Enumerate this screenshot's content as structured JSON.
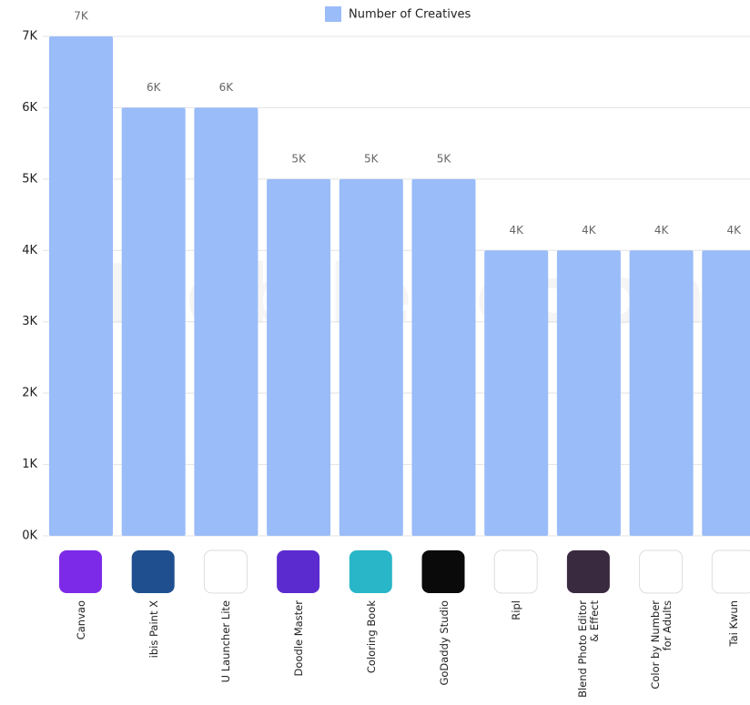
{
  "chart_data": {
    "type": "bar",
    "watermark": "MobileAction",
    "categories": [
      "Canvao",
      "ibis Paint X",
      "U Launcher Lite",
      "Doodle Master",
      "Coloring Book",
      "GoDaddy Studio",
      "Ripl",
      "Blend Photo Editor & Effect",
      "Color by Number for Adults",
      "Tai Kwun"
    ],
    "series": [
      {
        "name": "Number of Creatives",
        "color": "#9abcf8",
        "values": [
          7000,
          6000,
          6000,
          5000,
          5000,
          5000,
          4000,
          4000,
          4000,
          4000
        ],
        "value_labels": [
          "7K",
          "6K",
          "6K",
          "5K",
          "5K",
          "5K",
          "4K",
          "4K",
          "4K",
          "4K"
        ]
      }
    ],
    "ylim": [
      0,
      7000
    ],
    "yticks": [
      {
        "value": 0,
        "label": "0K"
      },
      {
        "value": 1000,
        "label": "1K"
      },
      {
        "value": 2000,
        "label": "2K"
      },
      {
        "value": 3000,
        "label": "3K"
      },
      {
        "value": 4000,
        "label": "4K"
      },
      {
        "value": 5000,
        "label": "5K"
      },
      {
        "value": 6000,
        "label": "6K"
      },
      {
        "value": 7000,
        "label": "7K"
      }
    ],
    "grid": true
  }
}
